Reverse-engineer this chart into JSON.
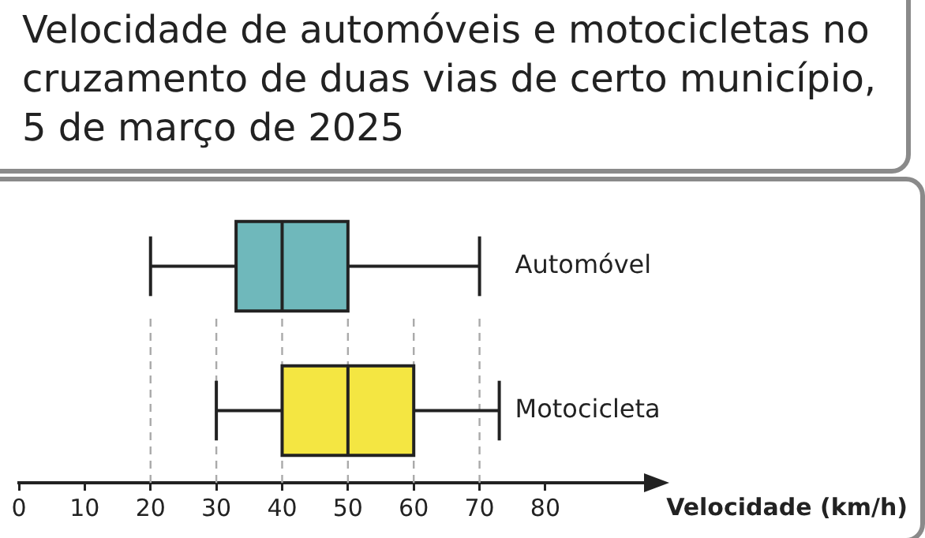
{
  "chart_data": {
    "type": "box",
    "orientation": "horizontal",
    "title": "Velocidade de automóveis e motocicletas no cruzamento de duas vias de certo município, 5 de março de 2025",
    "xlabel": "Velocidade (km/h)",
    "categories": [
      "Automóvel",
      "Motocicleta"
    ],
    "colors": [
      "#6fb8bb",
      "#f4e642"
    ],
    "boxes": [
      {
        "low": 20,
        "q1": 33,
        "median": 40,
        "q3": 50,
        "high": 70
      },
      {
        "low": 30,
        "q1": 40,
        "median": 50,
        "q3": 60,
        "high": 73
      }
    ],
    "xlim": [
      0,
      95
    ],
    "xticks": [
      0,
      10,
      20,
      30,
      40,
      50,
      60,
      70,
      80
    ],
    "ref_lines": [
      {
        "axis": "x",
        "value": 20,
        "color": "#aaaaaa",
        "line_style": "dashed"
      },
      {
        "axis": "x",
        "value": 30,
        "color": "#aaaaaa",
        "line_style": "dashed"
      },
      {
        "axis": "x",
        "value": 40,
        "color": "#aaaaaa",
        "line_style": "dashed"
      },
      {
        "axis": "x",
        "value": 50,
        "color": "#aaaaaa",
        "line_style": "dashed"
      },
      {
        "axis": "x",
        "value": 60,
        "color": "#aaaaaa",
        "line_style": "dashed"
      },
      {
        "axis": "x",
        "value": 70,
        "color": "#aaaaaa",
        "line_style": "dashed"
      }
    ],
    "grid": false,
    "legend": false
  }
}
